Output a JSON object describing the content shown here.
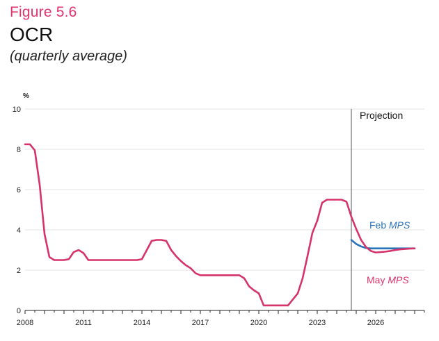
{
  "figure": {
    "label": "Figure 5.6",
    "title": "OCR",
    "subtitle": "(quarterly average)"
  },
  "chart_data": {
    "type": "line",
    "title": "OCR",
    "subtitle": "(quarterly average)",
    "ylabel": "%",
    "xlabel": "",
    "ylim": [
      0,
      10
    ],
    "y_ticks": [
      0,
      2,
      4,
      6,
      8,
      10
    ],
    "xlim": [
      2008.0,
      2028.5
    ],
    "x_ticks": [
      2008,
      2011,
      2014,
      2017,
      2020,
      2023,
      2026
    ],
    "projection_start": 2024.75,
    "projection_label": "Projection",
    "colors": {
      "may": "#d6336b",
      "feb": "#2b72b8"
    },
    "series": [
      {
        "name": "May MPS",
        "label_main": "May ",
        "label_italic": "MPS",
        "x": [
          2008.0,
          2008.25,
          2008.5,
          2008.75,
          2009.0,
          2009.25,
          2009.5,
          2009.75,
          2010.0,
          2010.25,
          2010.5,
          2010.75,
          2011.0,
          2011.25,
          2011.5,
          2011.75,
          2012.0,
          2012.25,
          2012.5,
          2012.75,
          2013.0,
          2013.25,
          2013.5,
          2013.75,
          2014.0,
          2014.25,
          2014.5,
          2014.75,
          2015.0,
          2015.25,
          2015.5,
          2015.75,
          2016.0,
          2016.25,
          2016.5,
          2016.75,
          2017.0,
          2017.25,
          2017.5,
          2017.75,
          2018.0,
          2018.25,
          2018.5,
          2018.75,
          2019.0,
          2019.25,
          2019.5,
          2019.75,
          2020.0,
          2020.25,
          2020.5,
          2020.75,
          2021.0,
          2021.25,
          2021.5,
          2021.75,
          2022.0,
          2022.25,
          2022.5,
          2022.75,
          2023.0,
          2023.25,
          2023.5,
          2023.75,
          2024.0,
          2024.25,
          2024.5,
          2024.75,
          2025.0,
          2025.25,
          2025.5,
          2025.75,
          2026.0,
          2026.25,
          2026.5,
          2026.75,
          2027.0,
          2027.25,
          2027.5,
          2027.75,
          2028.0
        ],
        "values": [
          8.25,
          8.25,
          7.95,
          6.25,
          3.8,
          2.65,
          2.5,
          2.5,
          2.5,
          2.55,
          2.9,
          3.0,
          2.85,
          2.5,
          2.5,
          2.5,
          2.5,
          2.5,
          2.5,
          2.5,
          2.5,
          2.5,
          2.5,
          2.5,
          2.55,
          3.0,
          3.45,
          3.5,
          3.5,
          3.45,
          3.0,
          2.7,
          2.45,
          2.25,
          2.1,
          1.85,
          1.75,
          1.75,
          1.75,
          1.75,
          1.75,
          1.75,
          1.75,
          1.75,
          1.75,
          1.6,
          1.2,
          1.0,
          0.85,
          0.25,
          0.25,
          0.25,
          0.25,
          0.25,
          0.25,
          0.55,
          0.85,
          1.6,
          2.7,
          3.85,
          4.45,
          5.35,
          5.5,
          5.5,
          5.5,
          5.5,
          5.4,
          4.65,
          4.05,
          3.5,
          3.15,
          2.95,
          2.88,
          2.9,
          2.92,
          2.95,
          3.0,
          3.03,
          3.05,
          3.07,
          3.08
        ]
      },
      {
        "name": "Feb MPS",
        "label_main": "Feb ",
        "label_italic": "MPS",
        "x": [
          2024.75,
          2025.0,
          2025.25,
          2025.5,
          2025.75,
          2026.0,
          2026.25,
          2026.5,
          2026.75,
          2027.0,
          2027.25,
          2027.5,
          2027.75,
          2028.0
        ],
        "values": [
          3.5,
          3.3,
          3.18,
          3.1,
          3.08,
          3.08,
          3.08,
          3.08,
          3.08,
          3.08,
          3.08,
          3.08,
          3.08,
          3.08
        ]
      }
    ]
  }
}
